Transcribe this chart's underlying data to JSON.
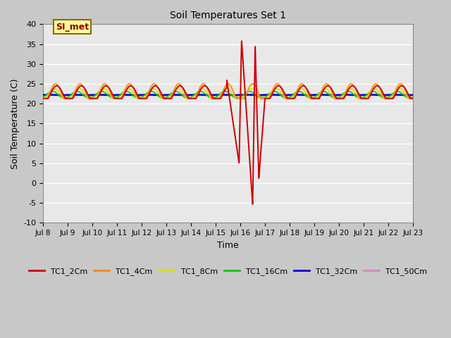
{
  "title": "Soil Temperatures Set 1",
  "xlabel": "Time",
  "ylabel": "Soil Temperature (C)",
  "ylim": [
    -10,
    40
  ],
  "fig_bg_color": "#c8c8c8",
  "plot_bg_color": "#e8e8e8",
  "annotation_text": "SI_met",
  "annotation_color": "#8b0000",
  "annotation_bg": "#ffff99",
  "annotation_border": "#8b6914",
  "tick_labels": [
    "Jul 8",
    "Jul 9",
    "Jul 10",
    "Jul 11",
    "Jul 12",
    "Jul 13",
    "Jul 14",
    "Jul 15",
    "Jul 16",
    "Jul 17",
    "Jul 18",
    "Jul 19",
    "Jul 20",
    "Jul 21",
    "Jul 22",
    "Jul 23"
  ],
  "legend": [
    "TC1_2Cm",
    "TC1_4Cm",
    "TC1_8Cm",
    "TC1_16Cm",
    "TC1_32Cm",
    "TC1_50Cm"
  ],
  "legend_colors": [
    "#cc0000",
    "#ff8800",
    "#dddd00",
    "#00cc00",
    "#0000cc",
    "#cc88cc"
  ],
  "series_colors": {
    "TC1_2Cm": "#cc0000",
    "TC1_4Cm": "#ff8800",
    "TC1_8Cm": "#dddd00",
    "TC1_16Cm": "#00cc00",
    "TC1_32Cm": "#0000cc",
    "TC1_50Cm": "#cc88cc"
  }
}
